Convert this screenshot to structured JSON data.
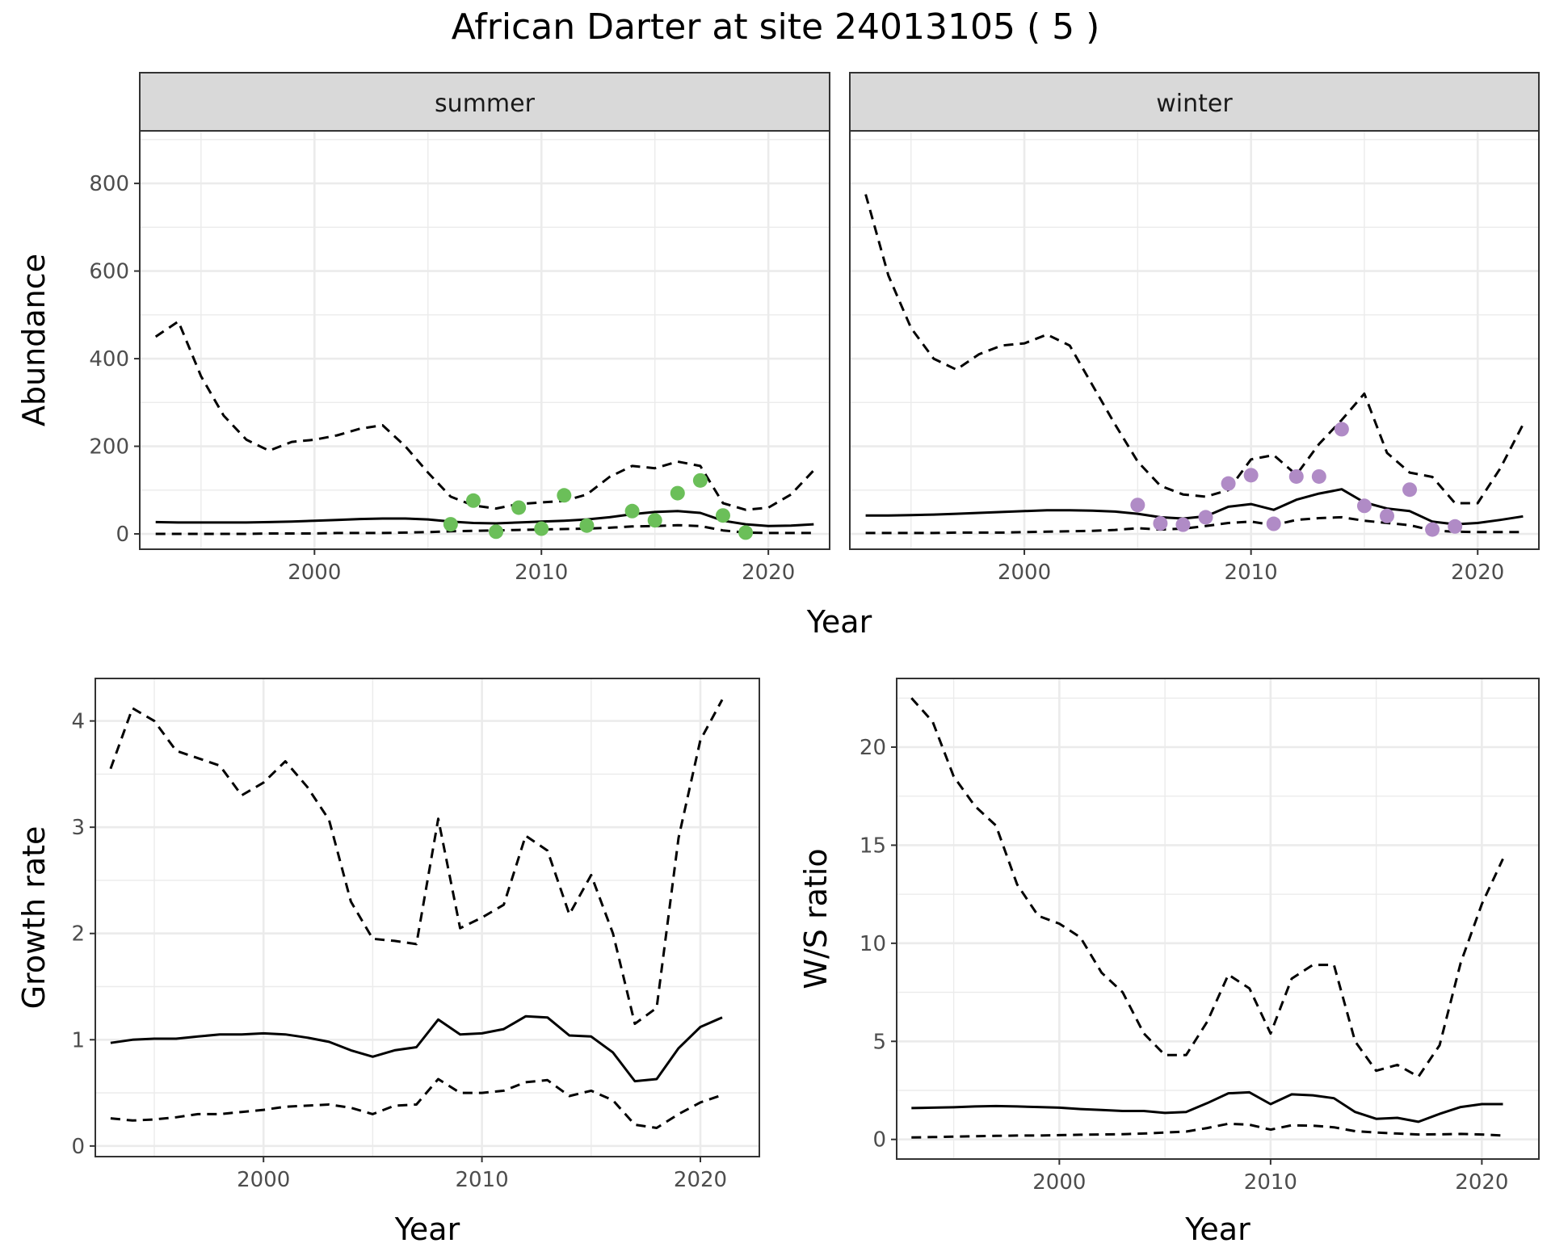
{
  "title": "African Darter at site 24013105 ( 5 )",
  "colors": {
    "summer_points": "#6bbf59",
    "winter_points": "#b08bc6",
    "lines": "#000000",
    "strip_fill": "#d9d9d9",
    "grid": "#ebebeb"
  },
  "chart_data": [
    {
      "type": "line",
      "panel": "summer",
      "facet_label": "summer",
      "xlabel": "Year",
      "ylabel": "Abundance",
      "xlim": [
        1992.3,
        2022.7
      ],
      "ylim": [
        -35,
        920
      ],
      "x_ticks": [
        2000,
        2010,
        2020
      ],
      "y_ticks": [
        0,
        200,
        400,
        600,
        800
      ],
      "grid": true,
      "series": [
        {
          "style": "solid",
          "x": [
            1993,
            1994,
            1995,
            1996,
            1997,
            1998,
            1999,
            2000,
            2001,
            2002,
            2003,
            2004,
            2005,
            2006,
            2007,
            2008,
            2009,
            2010,
            2011,
            2012,
            2013,
            2014,
            2015,
            2016,
            2017,
            2018,
            2019,
            2020,
            2021,
            2022
          ],
          "values": [
            27,
            26,
            26,
            26,
            26,
            27,
            28,
            30,
            32,
            34,
            35,
            35,
            33,
            28,
            25,
            24,
            26,
            28,
            30,
            33,
            38,
            45,
            50,
            52,
            48,
            30,
            22,
            18,
            19,
            22
          ]
        },
        {
          "style": "dashed",
          "x": [
            1993,
            1994,
            1995,
            1996,
            1997,
            1998,
            1999,
            2000,
            2001,
            2002,
            2003,
            2004,
            2005,
            2006,
            2007,
            2008,
            2009,
            2010,
            2011,
            2012,
            2013,
            2014,
            2015,
            2016,
            2017,
            2018,
            2019,
            2020,
            2021,
            2022
          ],
          "values": [
            450,
            485,
            360,
            270,
            215,
            190,
            210,
            215,
            225,
            240,
            248,
            200,
            140,
            85,
            65,
            58,
            68,
            72,
            75,
            90,
            130,
            155,
            150,
            165,
            155,
            70,
            55,
            60,
            90,
            145
          ]
        },
        {
          "style": "dashed",
          "x": [
            1993,
            1994,
            1995,
            1996,
            1997,
            1998,
            1999,
            2000,
            2001,
            2002,
            2003,
            2004,
            2005,
            2006,
            2007,
            2008,
            2009,
            2010,
            2011,
            2012,
            2013,
            2014,
            2015,
            2016,
            2017,
            2018,
            2019,
            2020,
            2021,
            2022
          ],
          "values": [
            0,
            0,
            0,
            0,
            0,
            1,
            1,
            1,
            2,
            2,
            2,
            3,
            4,
            6,
            7,
            8,
            9,
            10,
            11,
            12,
            14,
            17,
            18,
            20,
            18,
            8,
            3,
            2,
            2,
            2
          ]
        }
      ],
      "points": {
        "x": [
          2006,
          2007,
          2008,
          2009,
          2010,
          2011,
          2012,
          2014,
          2015,
          2016,
          2017,
          2018,
          2019
        ],
        "values": [
          22,
          76,
          5,
          60,
          12,
          88,
          19,
          52,
          31,
          93,
          122,
          42,
          3
        ]
      }
    },
    {
      "type": "line",
      "panel": "winter",
      "facet_label": "winter",
      "xlabel": "Year",
      "ylabel": "Abundance",
      "xlim": [
        1992.3,
        2022.7
      ],
      "ylim": [
        -35,
        920
      ],
      "x_ticks": [
        2000,
        2010,
        2020
      ],
      "y_ticks": [
        0,
        200,
        400,
        600,
        800
      ],
      "grid": true,
      "series": [
        {
          "style": "solid",
          "x": [
            1993,
            1994,
            1995,
            1996,
            1997,
            1998,
            1999,
            2000,
            2001,
            2002,
            2003,
            2004,
            2005,
            2006,
            2007,
            2008,
            2009,
            2010,
            2011,
            2012,
            2013,
            2014,
            2015,
            2016,
            2017,
            2018,
            2019,
            2020,
            2021,
            2022
          ],
          "values": [
            42,
            42,
            43,
            44,
            46,
            48,
            50,
            52,
            54,
            54,
            53,
            51,
            46,
            38,
            35,
            40,
            62,
            68,
            55,
            78,
            92,
            102,
            72,
            58,
            52,
            28,
            22,
            25,
            32,
            40
          ]
        },
        {
          "style": "dashed",
          "x": [
            1993,
            1994,
            1995,
            1996,
            1997,
            1998,
            1999,
            2000,
            2001,
            2002,
            2003,
            2004,
            2005,
            2006,
            2007,
            2008,
            2009,
            2010,
            2011,
            2012,
            2013,
            2014,
            2015,
            2016,
            2017,
            2018,
            2019,
            2020,
            2021,
            2022
          ],
          "values": [
            775,
            590,
            470,
            400,
            375,
            410,
            430,
            435,
            455,
            430,
            340,
            250,
            165,
            110,
            90,
            85,
            100,
            170,
            180,
            135,
            205,
            260,
            320,
            185,
            140,
            130,
            70,
            70,
            150,
            250
          ]
        },
        {
          "style": "dashed",
          "x": [
            1993,
            1994,
            1995,
            1996,
            1997,
            1998,
            1999,
            2000,
            2001,
            2002,
            2003,
            2004,
            2005,
            2006,
            2007,
            2008,
            2009,
            2010,
            2011,
            2012,
            2013,
            2014,
            2015,
            2016,
            2017,
            2018,
            2019,
            2020,
            2021,
            2022
          ],
          "values": [
            2,
            2,
            2,
            2,
            3,
            3,
            3,
            4,
            5,
            6,
            7,
            9,
            13,
            10,
            12,
            18,
            25,
            28,
            20,
            32,
            36,
            38,
            30,
            25,
            20,
            8,
            5,
            4,
            4,
            4
          ]
        }
      ],
      "points": {
        "x": [
          2005,
          2006,
          2007,
          2008,
          2009,
          2010,
          2011,
          2012,
          2013,
          2014,
          2015,
          2016,
          2017,
          2018,
          2019
        ],
        "values": [
          66,
          24,
          21,
          38,
          115,
          134,
          23,
          131,
          131,
          239,
          64,
          41,
          101,
          10,
          17
        ]
      }
    },
    {
      "type": "line",
      "panel": "growth",
      "xlabel": "Year",
      "ylabel": "Growth rate",
      "xlim": [
        1992.3,
        2022.7
      ],
      "ylim": [
        -0.1,
        4.4
      ],
      "x_ticks": [
        2000,
        2010,
        2020
      ],
      "y_ticks": [
        0,
        1,
        2,
        3,
        4
      ],
      "grid": true,
      "series": [
        {
          "style": "solid",
          "x": [
            1993,
            1994,
            1995,
            1996,
            1997,
            1998,
            1999,
            2000,
            2001,
            2002,
            2003,
            2004,
            2005,
            2006,
            2007,
            2008,
            2009,
            2010,
            2011,
            2012,
            2013,
            2014,
            2015,
            2016,
            2017,
            2018,
            2019,
            2020,
            2021
          ],
          "values": [
            0.97,
            1.0,
            1.01,
            1.01,
            1.03,
            1.05,
            1.05,
            1.06,
            1.05,
            1.02,
            0.98,
            0.9,
            0.84,
            0.9,
            0.93,
            1.19,
            1.05,
            1.06,
            1.1,
            1.22,
            1.21,
            1.04,
            1.03,
            0.88,
            0.61,
            0.63,
            0.92,
            1.12,
            1.21
          ]
        },
        {
          "style": "dashed",
          "x": [
            1993,
            1994,
            1995,
            1996,
            1997,
            1998,
            1999,
            2000,
            2001,
            2002,
            2003,
            2004,
            2005,
            2006,
            2007,
            2008,
            2009,
            2010,
            2011,
            2012,
            2013,
            2014,
            2015,
            2016,
            2017,
            2018,
            2019,
            2020,
            2021
          ],
          "values": [
            3.55,
            4.12,
            4.0,
            3.72,
            3.65,
            3.58,
            3.3,
            3.42,
            3.62,
            3.38,
            3.07,
            2.3,
            1.95,
            1.93,
            1.9,
            3.08,
            2.05,
            2.15,
            2.27,
            2.92,
            2.78,
            2.18,
            2.55,
            2.0,
            1.15,
            1.3,
            2.9,
            3.82,
            4.2
          ]
        },
        {
          "style": "dashed",
          "x": [
            1993,
            1994,
            1995,
            1996,
            1997,
            1998,
            1999,
            2000,
            2001,
            2002,
            2003,
            2004,
            2005,
            2006,
            2007,
            2008,
            2009,
            2010,
            2011,
            2012,
            2013,
            2014,
            2015,
            2016,
            2017,
            2018,
            2019,
            2020,
            2021
          ],
          "values": [
            0.26,
            0.24,
            0.25,
            0.27,
            0.3,
            0.3,
            0.32,
            0.34,
            0.37,
            0.38,
            0.39,
            0.36,
            0.3,
            0.38,
            0.39,
            0.63,
            0.5,
            0.5,
            0.52,
            0.6,
            0.62,
            0.47,
            0.52,
            0.43,
            0.2,
            0.17,
            0.3,
            0.41,
            0.48
          ]
        }
      ]
    },
    {
      "type": "line",
      "panel": "ws_ratio",
      "xlabel": "Year",
      "ylabel": "W/S ratio",
      "xlim": [
        1992.3,
        2022.7
      ],
      "ylim": [
        -1.0,
        23.5
      ],
      "x_ticks": [
        2000,
        2010,
        2020
      ],
      "y_ticks": [
        0,
        5,
        10,
        15,
        20
      ],
      "grid": true,
      "series": [
        {
          "style": "solid",
          "x": [
            1993,
            1994,
            1995,
            1996,
            1997,
            1998,
            1999,
            2000,
            2001,
            2002,
            2003,
            2004,
            2005,
            2006,
            2007,
            2008,
            2009,
            2010,
            2011,
            2012,
            2013,
            2014,
            2015,
            2016,
            2017,
            2018,
            2019,
            2020,
            2021
          ],
          "values": [
            1.6,
            1.62,
            1.64,
            1.68,
            1.7,
            1.68,
            1.65,
            1.62,
            1.55,
            1.5,
            1.45,
            1.45,
            1.35,
            1.4,
            1.85,
            2.35,
            2.4,
            1.8,
            2.3,
            2.25,
            2.1,
            1.4,
            1.05,
            1.1,
            0.9,
            1.3,
            1.65,
            1.8,
            1.8
          ]
        },
        {
          "style": "dashed",
          "x": [
            1993,
            1994,
            1995,
            1996,
            1997,
            1998,
            1999,
            2000,
            2001,
            2002,
            2003,
            2004,
            2005,
            2006,
            2007,
            2008,
            2009,
            2010,
            2011,
            2012,
            2013,
            2014,
            2015,
            2016,
            2017,
            2018,
            2019,
            2020,
            2021
          ],
          "values": [
            22.5,
            21.3,
            18.5,
            17.0,
            16.0,
            13.0,
            11.4,
            11.0,
            10.3,
            8.5,
            7.5,
            5.4,
            4.3,
            4.3,
            6.0,
            8.4,
            7.7,
            5.4,
            8.2,
            8.9,
            8.9,
            5.0,
            3.5,
            3.8,
            3.2,
            4.8,
            9.0,
            12.0,
            14.3
          ]
        },
        {
          "style": "dashed",
          "x": [
            1993,
            1994,
            1995,
            1996,
            1997,
            1998,
            1999,
            2000,
            2001,
            2002,
            2003,
            2004,
            2005,
            2006,
            2007,
            2008,
            2009,
            2010,
            2011,
            2012,
            2013,
            2014,
            2015,
            2016,
            2017,
            2018,
            2019,
            2020,
            2021
          ],
          "values": [
            0.1,
            0.12,
            0.14,
            0.16,
            0.18,
            0.2,
            0.2,
            0.22,
            0.24,
            0.25,
            0.27,
            0.3,
            0.35,
            0.4,
            0.58,
            0.8,
            0.75,
            0.5,
            0.72,
            0.7,
            0.62,
            0.42,
            0.35,
            0.3,
            0.25,
            0.26,
            0.28,
            0.25,
            0.2
          ]
        }
      ]
    }
  ]
}
